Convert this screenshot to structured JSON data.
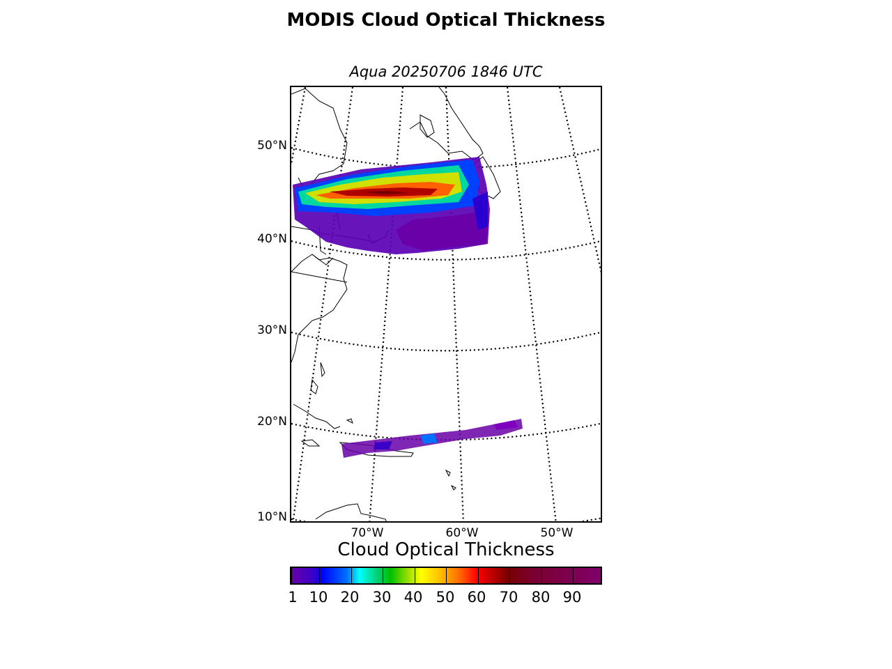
{
  "title": "MODIS Cloud Optical Thickness",
  "subtitle": "Aqua 20250706 1846 UTC",
  "map": {
    "projection": "conic",
    "lat_labels": [
      "50°N",
      "40°N",
      "30°N",
      "20°N",
      "10°N"
    ],
    "lon_labels": [
      "70°W",
      "60°W",
      "50°W"
    ],
    "graticule_style": "dotted"
  },
  "colorbar": {
    "title": "Cloud Optical Thickness",
    "tick_labels": [
      "1",
      "10",
      "20",
      "30",
      "40",
      "50",
      "60",
      "70",
      "80",
      "90"
    ],
    "range": [
      1,
      100
    ],
    "colors": [
      "#6a00a8",
      "#0000ff",
      "#00ffff",
      "#00c000",
      "#ffff00",
      "#ff7000",
      "#ff0000",
      "#780000",
      "#80006a"
    ]
  }
}
